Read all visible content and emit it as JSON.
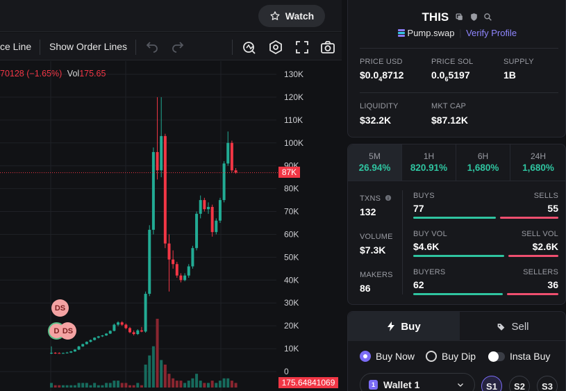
{
  "header": {
    "watch_label": "Watch"
  },
  "toolbar": {
    "price_line_label": "ce Line",
    "order_lines_label": "Show Order Lines"
  },
  "chart": {
    "ohlc_change": "70128 (−1.65%)",
    "vol_label": "Vol",
    "vol_value": "175.65",
    "price_tag": "87K",
    "volume_tag": "175.64841069",
    "ds_markers": [
      "DS",
      "D",
      "DS"
    ],
    "y_ticks": [
      {
        "label": "130K",
        "value": 130000
      },
      {
        "label": "120K",
        "value": 120000
      },
      {
        "label": "110K",
        "value": 110000
      },
      {
        "label": "100K",
        "value": 100000
      },
      {
        "label": "90K",
        "value": 90000
      },
      {
        "label": "80K",
        "value": 80000
      },
      {
        "label": "70K",
        "value": 70000
      },
      {
        "label": "60K",
        "value": 60000
      },
      {
        "label": "50K",
        "value": 50000
      },
      {
        "label": "40K",
        "value": 40000
      },
      {
        "label": "30K",
        "value": 30000
      },
      {
        "label": "20K",
        "value": 20000
      },
      {
        "label": "10K",
        "value": 10000
      },
      {
        "label": "0",
        "value": 0
      }
    ],
    "colors": {
      "up": "#22ab94",
      "down": "#f23645",
      "grid": "#1f2126"
    }
  },
  "chart_data": {
    "type": "candlestick",
    "ylim": [
      0,
      130000
    ],
    "current_price": 87000,
    "candles": [
      {
        "o": 8000,
        "h": 11000,
        "l": 7600,
        "c": 8200
      },
      {
        "o": 8200,
        "h": 8500,
        "l": 7700,
        "c": 8100
      },
      {
        "o": 8100,
        "h": 8400,
        "l": 7800,
        "c": 8000
      },
      {
        "o": 8000,
        "h": 8300,
        "l": 7800,
        "c": 8100
      },
      {
        "o": 8100,
        "h": 8600,
        "l": 7900,
        "c": 8300
      },
      {
        "o": 8300,
        "h": 9000,
        "l": 8100,
        "c": 8800
      },
      {
        "o": 8800,
        "h": 9800,
        "l": 8600,
        "c": 9600
      },
      {
        "o": 9600,
        "h": 11200,
        "l": 9400,
        "c": 11000
      },
      {
        "o": 11000,
        "h": 12200,
        "l": 10800,
        "c": 12000
      },
      {
        "o": 12000,
        "h": 13200,
        "l": 11800,
        "c": 13000
      },
      {
        "o": 13000,
        "h": 14000,
        "l": 12800,
        "c": 13800
      },
      {
        "o": 13800,
        "h": 15000,
        "l": 13600,
        "c": 14800
      },
      {
        "o": 14800,
        "h": 15600,
        "l": 14500,
        "c": 15400
      },
      {
        "o": 15400,
        "h": 16000,
        "l": 15100,
        "c": 15800
      },
      {
        "o": 15800,
        "h": 16800,
        "l": 15600,
        "c": 16600
      },
      {
        "o": 16600,
        "h": 18000,
        "l": 16400,
        "c": 17800
      },
      {
        "o": 17800,
        "h": 21000,
        "l": 17600,
        "c": 20500
      },
      {
        "o": 20500,
        "h": 22000,
        "l": 19800,
        "c": 21500
      },
      {
        "o": 21500,
        "h": 22000,
        "l": 20000,
        "c": 20500
      },
      {
        "o": 20500,
        "h": 21000,
        "l": 18500,
        "c": 19000
      },
      {
        "o": 19000,
        "h": 19500,
        "l": 16800,
        "c": 17200
      },
      {
        "o": 17200,
        "h": 18000,
        "l": 15800,
        "c": 16400
      },
      {
        "o": 16400,
        "h": 18500,
        "l": 16000,
        "c": 18000
      },
      {
        "o": 18000,
        "h": 19500,
        "l": 17200,
        "c": 17500
      },
      {
        "o": 17500,
        "h": 35000,
        "l": 17000,
        "c": 34000
      },
      {
        "o": 34000,
        "h": 64000,
        "l": 33000,
        "c": 62000
      },
      {
        "o": 62000,
        "h": 98000,
        "l": 60000,
        "c": 96000
      },
      {
        "o": 96000,
        "h": 120000,
        "l": 84000,
        "c": 88000
      },
      {
        "o": 88000,
        "h": 120000,
        "l": 85000,
        "c": 103000
      },
      {
        "o": 103000,
        "h": 104000,
        "l": 54000,
        "c": 56000
      },
      {
        "o": 56000,
        "h": 60000,
        "l": 35000,
        "c": 49000
      },
      {
        "o": 49000,
        "h": 53000,
        "l": 45000,
        "c": 47000
      },
      {
        "o": 47000,
        "h": 48000,
        "l": 41000,
        "c": 42000
      },
      {
        "o": 42000,
        "h": 43000,
        "l": 39000,
        "c": 40000
      },
      {
        "o": 40000,
        "h": 43000,
        "l": 39500,
        "c": 42000
      },
      {
        "o": 42000,
        "h": 47000,
        "l": 41000,
        "c": 46000
      },
      {
        "o": 46000,
        "h": 55000,
        "l": 45000,
        "c": 54000
      },
      {
        "o": 54000,
        "h": 70000,
        "l": 53000,
        "c": 69000
      },
      {
        "o": 69000,
        "h": 77000,
        "l": 67000,
        "c": 75000
      },
      {
        "o": 75000,
        "h": 76000,
        "l": 70000,
        "c": 71000
      },
      {
        "o": 71000,
        "h": 74000,
        "l": 69000,
        "c": 72000
      },
      {
        "o": 72000,
        "h": 73000,
        "l": 59000,
        "c": 61000
      },
      {
        "o": 61000,
        "h": 67000,
        "l": 60000,
        "c": 66000
      },
      {
        "o": 66000,
        "h": 76000,
        "l": 65000,
        "c": 75000
      },
      {
        "o": 75000,
        "h": 92000,
        "l": 74000,
        "c": 91000
      },
      {
        "o": 91000,
        "h": 105000,
        "l": 90000,
        "c": 100000
      },
      {
        "o": 100000,
        "h": 101000,
        "l": 87000,
        "c": 88000
      },
      {
        "o": 88000,
        "h": 89000,
        "l": 86500,
        "c": 87000
      }
    ],
    "volumes": [
      2,
      1,
      1,
      1,
      1,
      1,
      1,
      2,
      2,
      2,
      1,
      2,
      1,
      1,
      2,
      2,
      3,
      3,
      2,
      2,
      1,
      1,
      2,
      1,
      10,
      14,
      18,
      30,
      12,
      10,
      6,
      4,
      3,
      3,
      2,
      3,
      4,
      6,
      3,
      2,
      2,
      3,
      2,
      3,
      4,
      4,
      3,
      2
    ]
  },
  "token": {
    "symbol": "THIS",
    "platform": "Pump.swap",
    "verify_label": "Verify Profile",
    "stats": [
      {
        "label": "PRICE USD",
        "value_prefix": "$0.0",
        "value_sub": "4",
        "value_suffix": "8712"
      },
      {
        "label": "PRICE SOL",
        "value_prefix": "0.0",
        "value_sub": "6",
        "value_suffix": "5197"
      },
      {
        "label": "SUPPLY",
        "value": "1B"
      },
      {
        "label": "LIQUIDITY",
        "value": "$32.2K"
      },
      {
        "label": "MKT CAP",
        "value": "$87.12K"
      }
    ]
  },
  "timeframes": [
    {
      "label": "5M",
      "value": "26.94%"
    },
    {
      "label": "1H",
      "value": "820.91%"
    },
    {
      "label": "6H",
      "value": "1,680%"
    },
    {
      "label": "24H",
      "value": "1,680%"
    }
  ],
  "activity": {
    "txns_label": "TXNS",
    "txns_value": "132",
    "volume_label": "VOLUME",
    "volume_value": "$7.3K",
    "makers_label": "MAKERS",
    "makers_value": "86",
    "buys_label": "BUYS",
    "buys_value": "77",
    "sells_label": "SELLS",
    "sells_value": "55",
    "buyvol_label": "BUY VOL",
    "buyvol_value": "$4.6K",
    "sellvol_label": "SELL VOL",
    "sellvol_value": "$2.6K",
    "buyers_label": "BUYERS",
    "buyers_value": "62",
    "sellers_label": "SELLERS",
    "sellers_value": "36",
    "ratios": {
      "buys": 0.583,
      "buyvol": 0.639,
      "buyers": 0.633
    },
    "colors": {
      "buy": "#2fc4a0",
      "sell": "#ef4f6f"
    }
  },
  "trade": {
    "buy_tab": "Buy",
    "sell_tab": "Sell",
    "buy_now": "Buy Now",
    "buy_dip": "Buy Dip",
    "insta_buy": "Insta Buy",
    "wallet": "Wallet 1",
    "wallet_badge": "1",
    "presets": [
      "S1",
      "S2",
      "S3"
    ],
    "colors": {
      "accent": "#7b6cf6"
    }
  }
}
